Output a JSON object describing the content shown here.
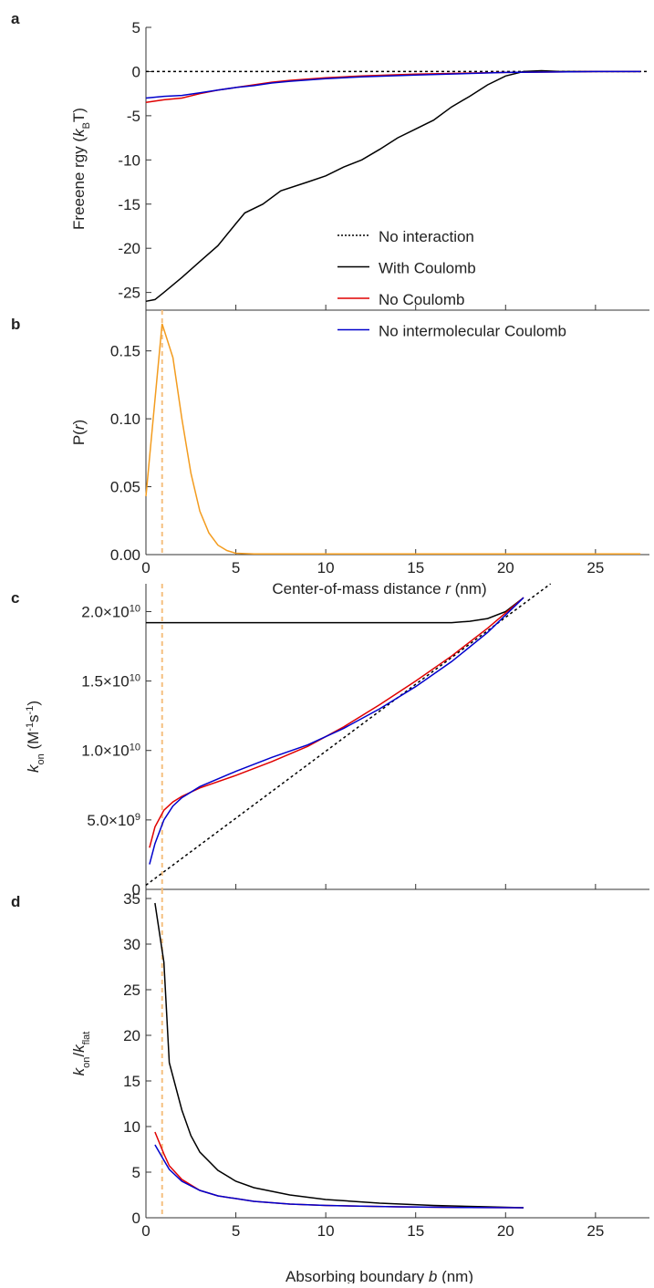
{
  "chart_data": [
    {
      "type": "line",
      "panel_label": "a",
      "ylabel": [
        "Freeene rgy (",
        "k",
        "B",
        "T)"
      ],
      "xlim": [
        0,
        28
      ],
      "xticks": [
        0,
        5,
        10,
        15,
        20,
        25
      ],
      "ylim": [
        -27,
        5
      ],
      "yticks": [
        5,
        0,
        -5,
        -10,
        -15,
        -20,
        -25
      ],
      "series": [
        {
          "name": "No interaction",
          "color": "#000000",
          "dash": true,
          "x": [
            0,
            28
          ],
          "values": [
            0,
            0
          ]
        },
        {
          "name": "With Coulomb",
          "color": "#000000",
          "x": [
            0,
            0.5,
            1,
            2,
            3,
            4,
            5,
            5.5,
            6.5,
            7.5,
            9,
            10,
            11,
            12,
            13,
            14,
            15,
            16,
            17,
            18,
            19,
            20,
            21,
            22,
            23,
            24,
            25,
            26,
            27.5
          ],
          "values": [
            -26,
            -25.8,
            -25,
            -23.3,
            -21.5,
            -19.7,
            -17.2,
            -16,
            -15,
            -13.5,
            -12.5,
            -11.8,
            -10.8,
            -10,
            -8.8,
            -7.5,
            -6.5,
            -5.5,
            -4,
            -2.8,
            -1.5,
            -0.5,
            0,
            0.1,
            0,
            0,
            0,
            0,
            0
          ]
        },
        {
          "name": "No Coulomb",
          "color": "#e00000",
          "x": [
            0,
            1,
            2,
            3,
            4,
            5,
            6,
            7,
            8,
            10,
            12,
            15,
            20,
            25,
            27.5
          ],
          "values": [
            -3.5,
            -3.2,
            -3,
            -2.5,
            -2.1,
            -1.8,
            -1.5,
            -1.2,
            -1,
            -0.7,
            -0.5,
            -0.3,
            -0.1,
            0,
            0
          ]
        },
        {
          "name": "No intermolecular Coulomb",
          "color": "#0000cc",
          "x": [
            0,
            1,
            2,
            3,
            4,
            5,
            6,
            7,
            8,
            10,
            12,
            15,
            20,
            25,
            27.5
          ],
          "values": [
            -3,
            -2.8,
            -2.7,
            -2.4,
            -2.1,
            -1.8,
            -1.6,
            -1.3,
            -1.1,
            -0.8,
            -0.6,
            -0.4,
            -0.1,
            0,
            0
          ]
        }
      ]
    },
    {
      "type": "line",
      "panel_label": "b",
      "ylabel": [
        "P(",
        "r",
        ")"
      ],
      "xlabel": [
        "Center-of-mass  distance ",
        "r",
        " (nm)"
      ],
      "xlim": [
        0,
        28
      ],
      "xticks": [
        0,
        5,
        10,
        15,
        20,
        25
      ],
      "ylim": [
        0,
        0.18
      ],
      "yticks": [
        {
          "value": 0,
          "label": "0.00"
        },
        {
          "value": 0.05,
          "label": "0.05"
        },
        {
          "value": 0.1,
          "label": "0.10"
        },
        {
          "value": 0.15,
          "label": "0.15"
        }
      ],
      "vline": {
        "x": 0.9,
        "color": "#f5c080"
      },
      "series": [
        {
          "color": "#f39c1f",
          "x": [
            0,
            0.9,
            1.5,
            2,
            2.5,
            3,
            3.5,
            4,
            4.5,
            5,
            6,
            27.5
          ],
          "values": [
            0.043,
            0.17,
            0.145,
            0.1,
            0.06,
            0.032,
            0.016,
            0.007,
            0.003,
            0.001,
            0.0005,
            0.0005
          ]
        }
      ]
    },
    {
      "type": "line",
      "panel_label": "c",
      "ylabel": [
        "k",
        "on",
        " (M",
        "-1",
        "s",
        "-1",
        ")"
      ],
      "xlim": [
        0,
        28
      ],
      "xticks": [
        0,
        5,
        10,
        15,
        20,
        25
      ],
      "ylim": [
        0,
        22000000000
      ],
      "yticks": [
        0,
        {
          "value": 5000000000,
          "label": [
            "5.0×10",
            "9"
          ]
        },
        {
          "value": 10000000000,
          "label": [
            "1.0×10",
            "10"
          ]
        },
        {
          "value": 15000000000,
          "label": [
            "1.5×10",
            "10"
          ]
        },
        {
          "value": 20000000000,
          "label": [
            "2.0×10",
            "10"
          ]
        }
      ],
      "vline": {
        "x": 0.9,
        "color": "#f5c080"
      },
      "series": [
        {
          "color": "#000000",
          "dash": true,
          "x": [
            0,
            22.5
          ],
          "values": [
            300000000,
            22000000000
          ]
        },
        {
          "color": "#000000",
          "x": [
            0,
            5,
            10,
            15,
            17,
            18,
            19,
            20,
            21
          ],
          "values": [
            19200000000,
            19200000000,
            19200000000,
            19200000000,
            19200000000,
            19300000000,
            19500000000,
            20000000000,
            21000000000
          ]
        },
        {
          "color": "#e00000",
          "x": [
            0.2,
            0.5,
            1,
            1.5,
            2,
            3,
            5,
            7,
            9,
            11,
            13,
            15,
            17,
            19,
            21
          ],
          "values": [
            3000000000,
            4500000000,
            5700000000,
            6300000000,
            6700000000,
            7300000000,
            8200000000,
            9200000000,
            10300000000,
            11700000000,
            13300000000,
            15000000000,
            16800000000,
            18800000000,
            21000000000
          ]
        },
        {
          "color": "#0000cc",
          "x": [
            0.2,
            0.5,
            1,
            1.5,
            2,
            3,
            5,
            7,
            9,
            11,
            13,
            15,
            17,
            19,
            21
          ],
          "values": [
            1800000000,
            3300000000,
            5000000000,
            6000000000,
            6600000000,
            7400000000,
            8500000000,
            9500000000,
            10400000000,
            11600000000,
            13000000000,
            14600000000,
            16400000000,
            18500000000,
            21000000000
          ]
        }
      ]
    },
    {
      "type": "line",
      "panel_label": "d",
      "ylabel": [
        "k",
        "on",
        "/",
        "k",
        "flat"
      ],
      "xlabel": [
        "Absorbing boundary ",
        "b",
        " (nm)"
      ],
      "xlim": [
        0,
        28
      ],
      "xticks": [
        0,
        5,
        10,
        15,
        20,
        25
      ],
      "ylim": [
        0,
        36
      ],
      "yticks": [
        0,
        5,
        10,
        15,
        20,
        25,
        30,
        35
      ],
      "vline": {
        "x": 0.9,
        "color": "#f5c080"
      },
      "series": [
        {
          "color": "#000000",
          "x": [
            0.5,
            1,
            1.3,
            2,
            2.5,
            3,
            4,
            5,
            6,
            8,
            10,
            13,
            16,
            19,
            21
          ],
          "values": [
            34.5,
            28,
            17,
            11.8,
            9,
            7.2,
            5.2,
            4,
            3.3,
            2.5,
            2,
            1.6,
            1.35,
            1.2,
            1.1
          ]
        },
        {
          "color": "#e00000",
          "x": [
            0.5,
            1,
            1.3,
            2,
            3,
            4,
            6,
            8,
            10,
            14,
            18,
            21
          ],
          "values": [
            9.4,
            7,
            5.7,
            4.2,
            3,
            2.4,
            1.8,
            1.5,
            1.35,
            1.2,
            1.12,
            1.1
          ]
        },
        {
          "color": "#0000cc",
          "x": [
            0.5,
            1,
            1.3,
            2,
            3,
            4,
            6,
            8,
            10,
            14,
            18,
            21
          ],
          "values": [
            8,
            6.3,
            5.3,
            4,
            3,
            2.4,
            1.8,
            1.5,
            1.35,
            1.2,
            1.12,
            1.1
          ]
        }
      ]
    }
  ]
}
